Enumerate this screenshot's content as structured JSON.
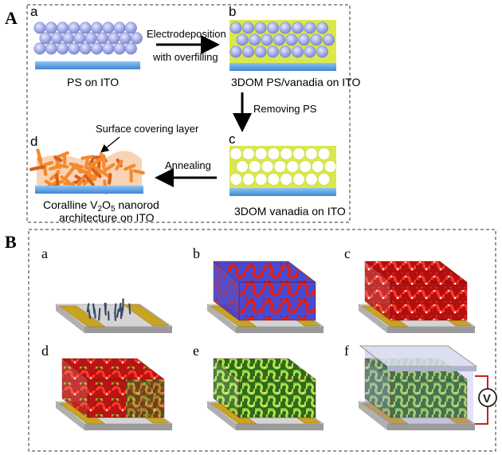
{
  "section_a": {
    "letter": "A",
    "panels": {
      "a": {
        "letter": "a",
        "caption": "PS on ITO"
      },
      "b": {
        "letter": "b",
        "caption": "3DOM PS/vanadia on ITO"
      },
      "c": {
        "letter": "c",
        "caption": "3DOM vanadia on ITO"
      },
      "d": {
        "letter": "d",
        "caption_line1_pre": "Coralline V",
        "caption_sub1": "2",
        "caption_mid": "O",
        "caption_sub2": "5",
        "caption_line1_post": " nanorod",
        "caption_line2": "architecture on ITO",
        "callout": "Surface covering layer"
      }
    },
    "arrows": {
      "ab_line1": "Electrodeposition",
      "ab_line2": "with overfilling",
      "bc": "Removing PS",
      "cd": "Annealing"
    }
  },
  "section_b": {
    "letter": "B",
    "panels": [
      "a",
      "b",
      "c",
      "d",
      "e",
      "f"
    ],
    "meter_symbol": "V"
  },
  "colors": {
    "ito_blue": "#5aa0e0",
    "ps_sphere": "#9aa6e6",
    "vanadia_yellow": "#d8e84a",
    "nanorod_orange": "#f0802a",
    "coral_red": "#e02018",
    "coral_green": "#8cc63a",
    "electrode_gold": "#c8a020",
    "substrate_gray": "#b8b8b8"
  }
}
